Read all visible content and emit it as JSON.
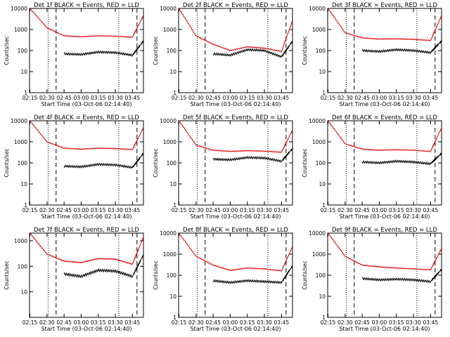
{
  "figure": {
    "colors": {
      "events": "#000000",
      "lld": "#dd0000",
      "axes": "#000000",
      "background": "#ffffff"
    }
  },
  "chart_data": [
    {
      "type": "line",
      "title": "Det 1f BLACK = Events, RED = LLD",
      "xlabel": "Start Time (03-Oct-06 02:14:40)",
      "ylabel": "Counts/sec",
      "xticks": [
        "02:15",
        "02:30",
        "02:45",
        "03:00",
        "03:15",
        "03:30",
        "03:45"
      ],
      "yticks": [
        "1",
        "10",
        "100",
        "1000",
        "10000"
      ],
      "yscale": "log",
      "ylim": [
        1,
        10000
      ],
      "x_minutes_from_0215": [
        0,
        15,
        30,
        45,
        60,
        75,
        90,
        100
      ],
      "series": [
        {
          "values": [
            10000,
            1200,
            500,
            450,
            500,
            480,
            430,
            5000
          ]
        },
        {
          "values": [
            null,
            null,
            70,
            65,
            85,
            80,
            60,
            300
          ]
        }
      ],
      "vlines": [
        {
          "x_label": "02:31",
          "style": "dotted"
        },
        {
          "x_label": "02:38",
          "style": "dashed"
        },
        {
          "x_label": "03:33",
          "style": "dotted"
        },
        {
          "x_label": "03:49",
          "style": "dashed"
        }
      ]
    },
    {
      "type": "line",
      "title": "Det 2f BLACK = Events, RED = LLD",
      "xlabel": "Start Time (03-Oct-06 02:14:40)",
      "ylabel": "Counts/sec",
      "xticks": [
        "02:15",
        "02:30",
        "02:45",
        "03:00",
        "03:15",
        "03:30",
        "03:45"
      ],
      "yticks": [
        "1",
        "10",
        "100",
        "1000",
        "10000"
      ],
      "yscale": "log",
      "ylim": [
        1,
        10000
      ],
      "x_minutes_from_0215": [
        0,
        15,
        30,
        45,
        60,
        75,
        90,
        100
      ],
      "series": [
        {
          "values": [
            10000,
            500,
            200,
            100,
            150,
            130,
            90,
            3000
          ]
        },
        {
          "values": [
            null,
            null,
            70,
            60,
            110,
            100,
            50,
            300
          ]
        }
      ],
      "vlines": [
        {
          "x_label": "02:31",
          "style": "dotted"
        },
        {
          "x_label": "02:38",
          "style": "dashed"
        },
        {
          "x_label": "03:33",
          "style": "dotted"
        },
        {
          "x_label": "03:49",
          "style": "dashed"
        }
      ]
    },
    {
      "type": "line",
      "title": "Det 3f BLACK = Events, RED = LLD",
      "xlabel": "Start Time (03-Oct-06 02:14:40)",
      "ylabel": "Counts/sec",
      "xticks": [
        "02:15",
        "02:30",
        "02:45",
        "03:00",
        "03:15",
        "03:30",
        "03:45"
      ],
      "yticks": [
        "1",
        "10",
        "100",
        "1000",
        "10000"
      ],
      "yscale": "log",
      "ylim": [
        1,
        10000
      ],
      "x_minutes_from_0215": [
        0,
        15,
        30,
        45,
        60,
        75,
        90,
        100
      ],
      "series": [
        {
          "values": [
            10000,
            700,
            400,
            350,
            360,
            340,
            300,
            5000
          ]
        },
        {
          "values": [
            null,
            null,
            100,
            90,
            110,
            100,
            80,
            300
          ]
        }
      ],
      "vlines": [
        {
          "x_label": "02:31",
          "style": "dotted"
        },
        {
          "x_label": "02:38",
          "style": "dashed"
        },
        {
          "x_label": "03:33",
          "style": "dotted"
        },
        {
          "x_label": "03:49",
          "style": "dashed"
        }
      ]
    },
    {
      "type": "line",
      "title": "Det 4f BLACK = Events, RED = LLD",
      "xlabel": "Start Time (03-Oct-06 02:14:40)",
      "ylabel": "Counts/sec",
      "xticks": [
        "02:15",
        "02:30",
        "02:45",
        "03:00",
        "03:15",
        "03:30",
        "03:45"
      ],
      "yticks": [
        "1",
        "10",
        "100",
        "1000",
        "10000"
      ],
      "yscale": "log",
      "ylim": [
        1,
        10000
      ],
      "x_minutes_from_0215": [
        0,
        15,
        30,
        45,
        60,
        75,
        90,
        100
      ],
      "series": [
        {
          "values": [
            10000,
            1000,
            500,
            450,
            500,
            480,
            430,
            5000
          ]
        },
        {
          "values": [
            null,
            null,
            70,
            65,
            85,
            80,
            60,
            300
          ]
        }
      ],
      "vlines": [
        {
          "x_label": "02:31",
          "style": "dotted"
        },
        {
          "x_label": "02:38",
          "style": "dashed"
        },
        {
          "x_label": "03:33",
          "style": "dotted"
        },
        {
          "x_label": "03:49",
          "style": "dashed"
        }
      ]
    },
    {
      "type": "line",
      "title": "Det 5f BLACK = Events, RED = LLD",
      "xlabel": "Start Time (03-Oct-06 02:14:40)",
      "ylabel": "Counts/sec",
      "xticks": [
        "02:15",
        "02:30",
        "02:45",
        "03:00",
        "03:15",
        "03:30",
        "03:45"
      ],
      "yticks": [
        "1",
        "10",
        "100",
        "1000",
        "10000"
      ],
      "yscale": "log",
      "ylim": [
        1,
        10000
      ],
      "x_minutes_from_0215": [
        0,
        15,
        30,
        45,
        60,
        75,
        90,
        100
      ],
      "series": [
        {
          "values": [
            10000,
            700,
            400,
            350,
            380,
            360,
            320,
            4000
          ]
        },
        {
          "values": [
            null,
            null,
            150,
            140,
            180,
            170,
            120,
            500
          ]
        }
      ],
      "vlines": [
        {
          "x_label": "02:31",
          "style": "dotted"
        },
        {
          "x_label": "02:38",
          "style": "dashed"
        },
        {
          "x_label": "03:33",
          "style": "dotted"
        },
        {
          "x_label": "03:49",
          "style": "dashed"
        }
      ]
    },
    {
      "type": "line",
      "title": "Det 6f BLACK = Events, RED = LLD",
      "xlabel": "Start Time (03-Oct-06 02:14:40)",
      "ylabel": "Counts/sec",
      "xticks": [
        "02:15",
        "02:30",
        "02:45",
        "03:00",
        "03:15",
        "03:30",
        "03:45"
      ],
      "yticks": [
        "1",
        "10",
        "100",
        "1000",
        "10000"
      ],
      "yscale": "log",
      "ylim": [
        1,
        10000
      ],
      "x_minutes_from_0215": [
        0,
        15,
        30,
        45,
        60,
        75,
        90,
        100
      ],
      "series": [
        {
          "values": [
            10000,
            800,
            450,
            400,
            420,
            400,
            350,
            5000
          ]
        },
        {
          "values": [
            null,
            null,
            110,
            100,
            120,
            110,
            90,
            300
          ]
        }
      ],
      "vlines": [
        {
          "x_label": "02:31",
          "style": "dotted"
        },
        {
          "x_label": "02:38",
          "style": "dashed"
        },
        {
          "x_label": "03:33",
          "style": "dotted"
        },
        {
          "x_label": "03:49",
          "style": "dashed"
        }
      ]
    },
    {
      "type": "line",
      "title": "Det 7f BLACK = Events, RED = LLD",
      "xlabel": "Start Time (03-Oct-06 02:14:40)",
      "ylabel": "Counts/sec",
      "xticks": [
        "02:15",
        "02:30",
        "02:45",
        "03:00",
        "03:15",
        "03:30",
        "03:45"
      ],
      "yticks": [
        "10",
        "100",
        "1000"
      ],
      "yscale": "log",
      "ylim": [
        1,
        2000
      ],
      "x_minutes_from_0215": [
        0,
        15,
        30,
        45,
        60,
        75,
        90,
        100
      ],
      "series": [
        {
          "values": [
            2000,
            300,
            160,
            140,
            200,
            190,
            120,
            1500
          ]
        },
        {
          "values": [
            null,
            null,
            50,
            40,
            70,
            65,
            40,
            300
          ]
        }
      ],
      "vlines": [
        {
          "x_label": "02:31",
          "style": "dotted"
        },
        {
          "x_label": "02:38",
          "style": "dashed"
        },
        {
          "x_label": "03:33",
          "style": "dotted"
        },
        {
          "x_label": "03:49",
          "style": "dashed"
        }
      ]
    },
    {
      "type": "line",
      "title": "Det 8f BLACK = Events, RED = LLD",
      "xlabel": "Start Time (03-Oct-06 02:14:40)",
      "ylabel": "Counts/sec",
      "xticks": [
        "02:15",
        "02:30",
        "02:45",
        "03:00",
        "03:15",
        "03:30",
        "03:45"
      ],
      "yticks": [
        "1",
        "10",
        "100",
        "1000",
        "10000"
      ],
      "yscale": "log",
      "ylim": [
        1,
        10000
      ],
      "x_minutes_from_0215": [
        0,
        15,
        30,
        45,
        60,
        75,
        90,
        100
      ],
      "series": [
        {
          "values": [
            10000,
            800,
            300,
            170,
            220,
            200,
            160,
            2500
          ]
        },
        {
          "values": [
            null,
            null,
            55,
            45,
            55,
            50,
            45,
            300
          ]
        }
      ],
      "vlines": [
        {
          "x_label": "02:31",
          "style": "dotted"
        },
        {
          "x_label": "02:38",
          "style": "dashed"
        },
        {
          "x_label": "03:33",
          "style": "dotted"
        },
        {
          "x_label": "03:49",
          "style": "dashed"
        }
      ]
    },
    {
      "type": "line",
      "title": "Det 9f BLACK = Events, RED = LLD",
      "xlabel": "Start Time (03-Oct-06 02:14:40)",
      "ylabel": "Counts/sec",
      "xticks": [
        "02:15",
        "02:30",
        "02:45",
        "03:00",
        "03:15",
        "03:30",
        "03:45"
      ],
      "yticks": [
        "1",
        "10",
        "100",
        "1000",
        "10000"
      ],
      "yscale": "log",
      "ylim": [
        1,
        10000
      ],
      "x_minutes_from_0215": [
        0,
        15,
        30,
        45,
        60,
        75,
        90,
        100
      ],
      "series": [
        {
          "values": [
            10000,
            800,
            300,
            250,
            220,
            200,
            180,
            2000
          ]
        },
        {
          "values": [
            null,
            null,
            70,
            60,
            65,
            60,
            50,
            200
          ]
        }
      ],
      "vlines": [
        {
          "x_label": "02:31",
          "style": "dotted"
        },
        {
          "x_label": "02:38",
          "style": "dashed"
        },
        {
          "x_label": "03:33",
          "style": "dotted"
        },
        {
          "x_label": "03:49",
          "style": "dashed"
        }
      ]
    }
  ]
}
